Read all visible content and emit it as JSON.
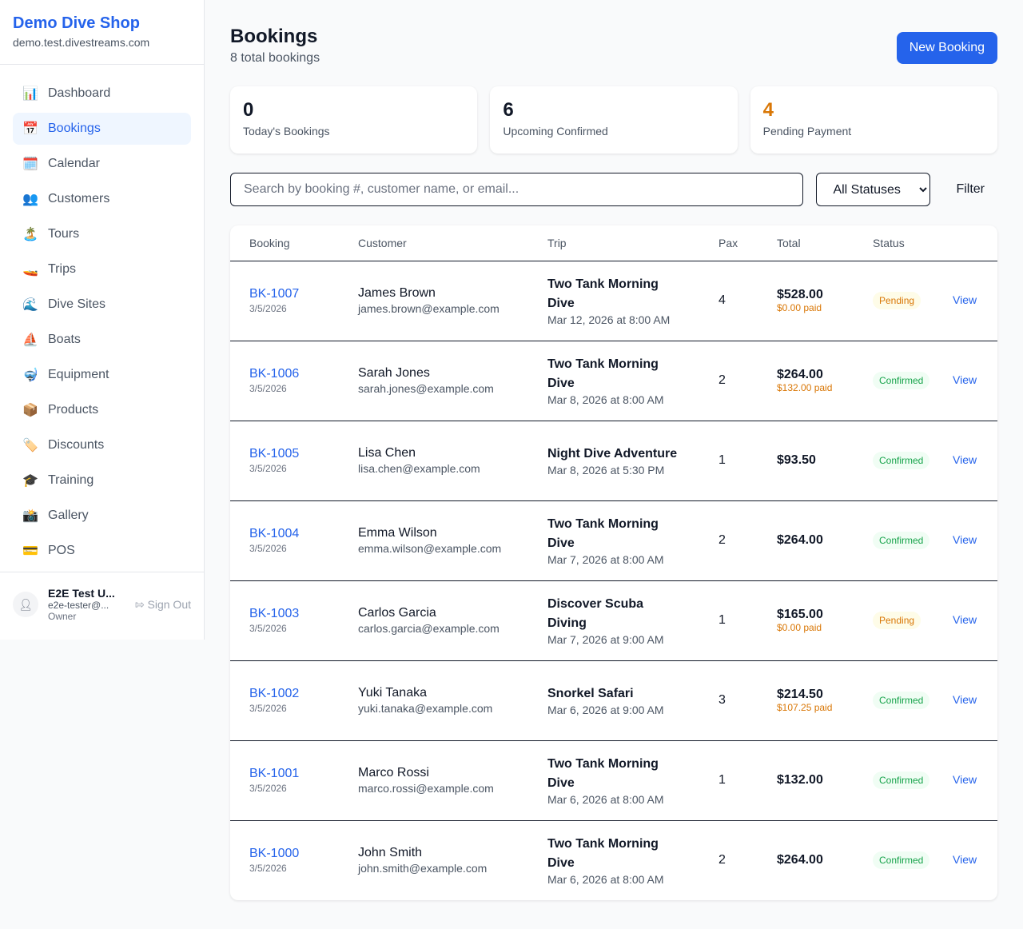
{
  "sidebar": {
    "shop_name": "Demo Dive Shop",
    "domain": "demo.test.divestreams.com",
    "items": [
      {
        "icon": "📊",
        "icon_name": "bar-chart-icon",
        "label": "Dashboard"
      },
      {
        "icon": "📅",
        "icon_name": "calendar-17-icon",
        "label": "Bookings",
        "active": true
      },
      {
        "icon": "🗓️",
        "icon_name": "spiral-calendar-icon",
        "label": "Calendar"
      },
      {
        "icon": "👥",
        "icon_name": "people-icon",
        "label": "Customers"
      },
      {
        "icon": "🏝️",
        "icon_name": "island-icon",
        "label": "Tours"
      },
      {
        "icon": "🚤",
        "icon_name": "speedboat-icon",
        "label": "Trips"
      },
      {
        "icon": "🌊",
        "icon_name": "wave-icon",
        "label": "Dive Sites"
      },
      {
        "icon": "⛵",
        "icon_name": "sailboat-icon",
        "label": "Boats"
      },
      {
        "icon": "🤿",
        "icon_name": "diving-mask-icon",
        "label": "Equipment"
      },
      {
        "icon": "📦",
        "icon_name": "package-icon",
        "label": "Products"
      },
      {
        "icon": "🏷️",
        "icon_name": "tag-icon",
        "label": "Discounts"
      },
      {
        "icon": "🎓",
        "icon_name": "graduation-cap-icon",
        "label": "Training"
      },
      {
        "icon": "📸",
        "icon_name": "camera-flash-icon",
        "label": "Gallery"
      },
      {
        "icon": "💳",
        "icon_name": "credit-card-icon",
        "label": "POS"
      }
    ],
    "user": {
      "name": "E2E Test U...",
      "email": "e2e-tester@...",
      "role": "Owner",
      "sign_out": "Sign Out"
    }
  },
  "header": {
    "title": "Bookings",
    "subtitle": "8 total bookings",
    "new_button": "New Booking"
  },
  "stats": [
    {
      "value": "0",
      "label": "Today's Bookings",
      "color": "#111827"
    },
    {
      "value": "6",
      "label": "Upcoming Confirmed",
      "color": "#111827"
    },
    {
      "value": "4",
      "label": "Pending Payment",
      "color": "#d97706"
    }
  ],
  "filters": {
    "search_placeholder": "Search by booking #, customer name, or email...",
    "status_selected": "All Statuses",
    "filter_button": "Filter"
  },
  "table": {
    "columns": [
      "Booking",
      "Customer",
      "Trip",
      "Pax",
      "Total",
      "Status",
      ""
    ],
    "rows": [
      {
        "id": "BK-1007",
        "date": "3/5/2026",
        "customer": "James Brown",
        "email": "james.brown@example.com",
        "trip": "Two Tank Morning Dive",
        "trip_date": "Mar 12, 2026 at 8:00 AM",
        "pax": "4",
        "total": "$528.00",
        "paid": "$0.00 paid",
        "status": "Pending",
        "action": "View"
      },
      {
        "id": "BK-1006",
        "date": "3/5/2026",
        "customer": "Sarah Jones",
        "email": "sarah.jones@example.com",
        "trip": "Two Tank Morning Dive",
        "trip_date": "Mar 8, 2026 at 8:00 AM",
        "pax": "2",
        "total": "$264.00",
        "paid": "$132.00 paid",
        "status": "Confirmed",
        "action": "View"
      },
      {
        "id": "BK-1005",
        "date": "3/5/2026",
        "customer": "Lisa Chen",
        "email": "lisa.chen@example.com",
        "trip": "Night Dive Adventure",
        "trip_date": "Mar 8, 2026 at 5:30 PM",
        "pax": "1",
        "total": "$93.50",
        "paid": null,
        "status": "Confirmed",
        "action": "View"
      },
      {
        "id": "BK-1004",
        "date": "3/5/2026",
        "customer": "Emma Wilson",
        "email": "emma.wilson@example.com",
        "trip": "Two Tank Morning Dive",
        "trip_date": "Mar 7, 2026 at 8:00 AM",
        "pax": "2",
        "total": "$264.00",
        "paid": null,
        "status": "Confirmed",
        "action": "View"
      },
      {
        "id": "BK-1003",
        "date": "3/5/2026",
        "customer": "Carlos Garcia",
        "email": "carlos.garcia@example.com",
        "trip": "Discover Scuba Diving",
        "trip_date": "Mar 7, 2026 at 9:00 AM",
        "pax": "1",
        "total": "$165.00",
        "paid": "$0.00 paid",
        "status": "Pending",
        "action": "View"
      },
      {
        "id": "BK-1002",
        "date": "3/5/2026",
        "customer": "Yuki Tanaka",
        "email": "yuki.tanaka@example.com",
        "trip": "Snorkel Safari",
        "trip_date": "Mar 6, 2026 at 9:00 AM",
        "pax": "3",
        "total": "$214.50",
        "paid": "$107.25 paid",
        "status": "Confirmed",
        "action": "View"
      },
      {
        "id": "BK-1001",
        "date": "3/5/2026",
        "customer": "Marco Rossi",
        "email": "marco.rossi@example.com",
        "trip": "Two Tank Morning Dive",
        "trip_date": "Mar 6, 2026 at 8:00 AM",
        "pax": "1",
        "total": "$132.00",
        "paid": null,
        "status": "Confirmed",
        "action": "View"
      },
      {
        "id": "BK-1000",
        "date": "3/5/2026",
        "customer": "John Smith",
        "email": "john.smith@example.com",
        "trip": "Two Tank Morning Dive",
        "trip_date": "Mar 6, 2026 at 8:00 AM",
        "pax": "2",
        "total": "$264.00",
        "paid": null,
        "status": "Confirmed",
        "action": "View"
      }
    ]
  }
}
